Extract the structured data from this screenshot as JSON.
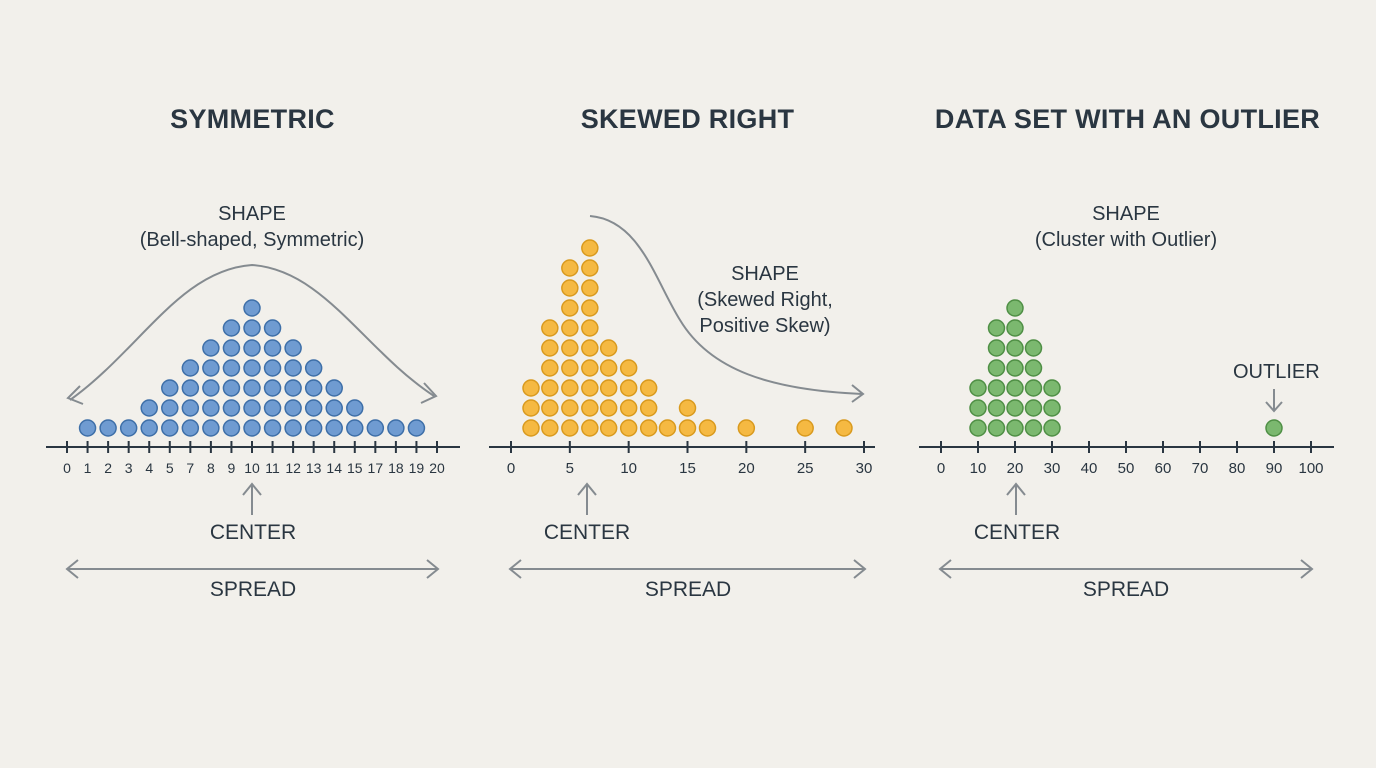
{
  "colors": {
    "background": "#f2f0eb",
    "axis": "#2a3641",
    "annotation": "#858b90",
    "blue_fill": "#6f9bd1",
    "blue_stroke": "#3e6fa8",
    "orange_fill": "#f5b942",
    "orange_stroke": "#d99a1e",
    "green_fill": "#7bb86f",
    "green_stroke": "#4f8f45"
  },
  "panels": [
    {
      "title": "SYMMETRIC",
      "shape_title": "SHAPE",
      "shape_desc": "(Bell-shaped, Symmetric)",
      "center_label": "CENTER",
      "spread_label": "SPREAD"
    },
    {
      "title": "SKEWED RIGHT",
      "shape_title": "SHAPE",
      "shape_desc_1": "(Skewed Right,",
      "shape_desc_2": "Positive Skew)",
      "center_label": "CENTER",
      "spread_label": "SPREAD"
    },
    {
      "title": "DATA SET WITH AN OUTLIER",
      "shape_title": "SHAPE",
      "shape_desc": "(Cluster with Outlier)",
      "outlier_label": "OUTLIER",
      "center_label": "CENTER",
      "spread_label": "SPREAD"
    }
  ],
  "chart_data": [
    {
      "type": "dot_plot",
      "title": "SYMMETRIC",
      "annotation": "SHAPE (Bell-shaped, Symmetric)",
      "tick_labels": [
        "0",
        "1",
        "2",
        "3",
        "4",
        "5",
        "7",
        "8",
        "9",
        "10",
        "11",
        "12",
        "13",
        "14",
        "15",
        "17",
        "18",
        "19",
        "20"
      ],
      "x": [
        "1",
        "2",
        "3",
        "4",
        "5",
        "7",
        "8",
        "9",
        "10",
        "11",
        "12",
        "13",
        "14",
        "15",
        "17",
        "18",
        "19"
      ],
      "counts": [
        1,
        1,
        1,
        2,
        3,
        4,
        5,
        6,
        7,
        6,
        5,
        4,
        3,
        2,
        1,
        1,
        1
      ],
      "center": "10",
      "color": "#6f9bd1"
    },
    {
      "type": "dot_plot",
      "title": "SKEWED RIGHT",
      "annotation": "SHAPE (Skewed Right, Positive Skew)",
      "tick_labels": [
        "0",
        "5",
        "10",
        "15",
        "20",
        "25",
        "30"
      ],
      "xlim": [
        0,
        30
      ],
      "x": [
        1.7,
        3.3,
        5,
        6.7,
        8.3,
        10,
        11.7,
        13.3,
        15,
        16.7,
        20,
        25,
        28.3
      ],
      "counts": [
        3,
        6,
        9,
        10,
        5,
        4,
        3,
        1,
        2,
        1,
        1,
        1,
        1
      ],
      "center": 6.3,
      "color": "#f5b942"
    },
    {
      "type": "dot_plot",
      "title": "DATA SET WITH AN OUTLIER",
      "annotation": "SHAPE (Cluster with Outlier)",
      "tick_labels": [
        "0",
        "10",
        "20",
        "30",
        "40",
        "50",
        "60",
        "70",
        "80",
        "90",
        "100"
      ],
      "xlim": [
        0,
        100
      ],
      "x": [
        10,
        15,
        20,
        25,
        30,
        90
      ],
      "counts": [
        3,
        6,
        7,
        5,
        3,
        1
      ],
      "outlier": 90,
      "center": 20,
      "color": "#7bb86f"
    }
  ]
}
